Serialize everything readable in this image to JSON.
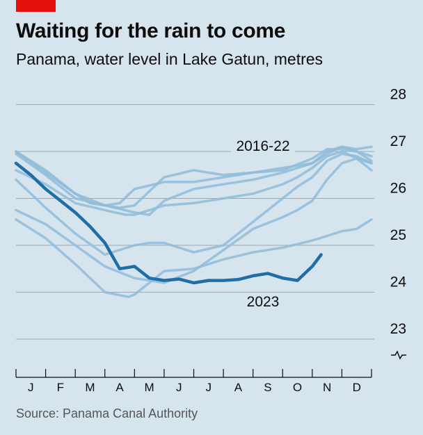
{
  "title": "Waiting for the rain to come",
  "subtitle": "Panama, water level in Lake Gatun, metres",
  "source": "Source: Panama Canal Authority",
  "colors": {
    "background": "#d6e4ee",
    "highlight": "#1f6fa6",
    "past_years": "#8fbcd9",
    "grid": "#9aa9b5",
    "brand": "#e3120b"
  },
  "chart_data": {
    "type": "line",
    "ylabel": "",
    "ylim": [
      22.5,
      28.2
    ],
    "yticks": [
      23,
      24,
      25,
      26,
      27,
      28
    ],
    "y_axis_break": true,
    "month_labels": [
      "J",
      "F",
      "M",
      "A",
      "M",
      "J",
      "J",
      "A",
      "S",
      "O",
      "N",
      "D"
    ],
    "annotations": [
      {
        "text": "2016-22"
      },
      {
        "text": "2023"
      }
    ],
    "series": [
      {
        "name": "2023",
        "highlight": true,
        "x": [
          0,
          0.5,
          1,
          1.5,
          2,
          2.5,
          3,
          3.5,
          4,
          4.5,
          5,
          5.5,
          6,
          6.5,
          7,
          7.5,
          8,
          8.5,
          9,
          9.5,
          10,
          10.3
        ],
        "y": [
          26.75,
          26.5,
          26.2,
          25.95,
          25.7,
          25.4,
          25.05,
          24.5,
          24.55,
          24.3,
          24.25,
          24.28,
          24.2,
          24.25,
          24.25,
          24.27,
          24.35,
          24.4,
          24.3,
          24.25,
          24.55,
          24.8
        ]
      },
      {
        "highlight": false,
        "x": [
          0,
          1,
          2,
          2.5,
          3,
          3.5,
          4,
          5,
          6,
          7,
          8,
          9,
          10,
          10.5,
          11,
          11.5,
          12
        ],
        "y": [
          27.0,
          26.6,
          26.1,
          25.9,
          25.85,
          25.9,
          26.2,
          26.35,
          26.35,
          26.45,
          26.55,
          26.6,
          26.85,
          27.05,
          27.05,
          27.0,
          26.9
        ]
      },
      {
        "highlight": false,
        "x": [
          0,
          1,
          2,
          3,
          3.5,
          4,
          5,
          6,
          7,
          8,
          9,
          10,
          10.5,
          11,
          11.5,
          12
        ],
        "y": [
          26.95,
          26.5,
          26.0,
          25.85,
          25.8,
          25.85,
          26.45,
          26.6,
          26.5,
          26.55,
          26.65,
          26.75,
          27.0,
          27.1,
          27.0,
          26.8
        ]
      },
      {
        "highlight": false,
        "x": [
          0,
          1,
          2,
          3,
          4,
          4.5,
          5,
          6,
          7,
          8,
          9,
          10,
          10.5,
          11,
          11.5,
          12
        ],
        "y": [
          27.0,
          26.55,
          26.1,
          25.85,
          25.7,
          25.65,
          25.95,
          26.2,
          26.3,
          26.4,
          26.55,
          26.75,
          26.95,
          27.1,
          27.05,
          27.1
        ]
      },
      {
        "highlight": false,
        "x": [
          0,
          1,
          2,
          3,
          3.7,
          4,
          4.5,
          5,
          6,
          7,
          8,
          9,
          9.5,
          10,
          10.5,
          11,
          11.5,
          12
        ],
        "y": [
          26.6,
          26.3,
          25.9,
          25.75,
          25.65,
          25.65,
          25.75,
          25.85,
          25.9,
          26.0,
          26.1,
          26.3,
          26.45,
          26.65,
          26.9,
          27.0,
          26.85,
          26.6
        ]
      },
      {
        "highlight": false,
        "x": [
          0,
          1,
          2,
          3,
          4,
          4.5,
          5,
          6,
          7,
          8,
          9,
          9.5,
          10,
          10.5,
          11,
          11.5,
          12
        ],
        "y": [
          26.4,
          25.8,
          25.25,
          24.8,
          25.0,
          25.05,
          25.05,
          24.85,
          25.0,
          25.5,
          26.0,
          26.25,
          26.45,
          26.8,
          26.95,
          26.9,
          26.75
        ]
      },
      {
        "highlight": false,
        "x": [
          0,
          1,
          2,
          3,
          4,
          5,
          6,
          7,
          8,
          9,
          9.5,
          10,
          10.5,
          11,
          11.5,
          12
        ],
        "y": [
          25.75,
          25.45,
          25.0,
          24.55,
          24.3,
          24.2,
          24.45,
          24.9,
          25.35,
          25.6,
          25.75,
          25.95,
          26.4,
          26.75,
          26.85,
          26.75
        ]
      },
      {
        "highlight": false,
        "x": [
          0,
          1,
          2,
          3,
          3.8,
          4,
          4.5,
          5,
          6,
          7,
          8,
          9,
          10,
          10.5,
          11,
          11.5,
          12
        ],
        "y": [
          25.55,
          25.15,
          24.6,
          24.0,
          23.9,
          23.95,
          24.2,
          24.45,
          24.5,
          24.7,
          24.85,
          24.95,
          25.1,
          25.2,
          25.3,
          25.35,
          25.55
        ]
      }
    ]
  }
}
